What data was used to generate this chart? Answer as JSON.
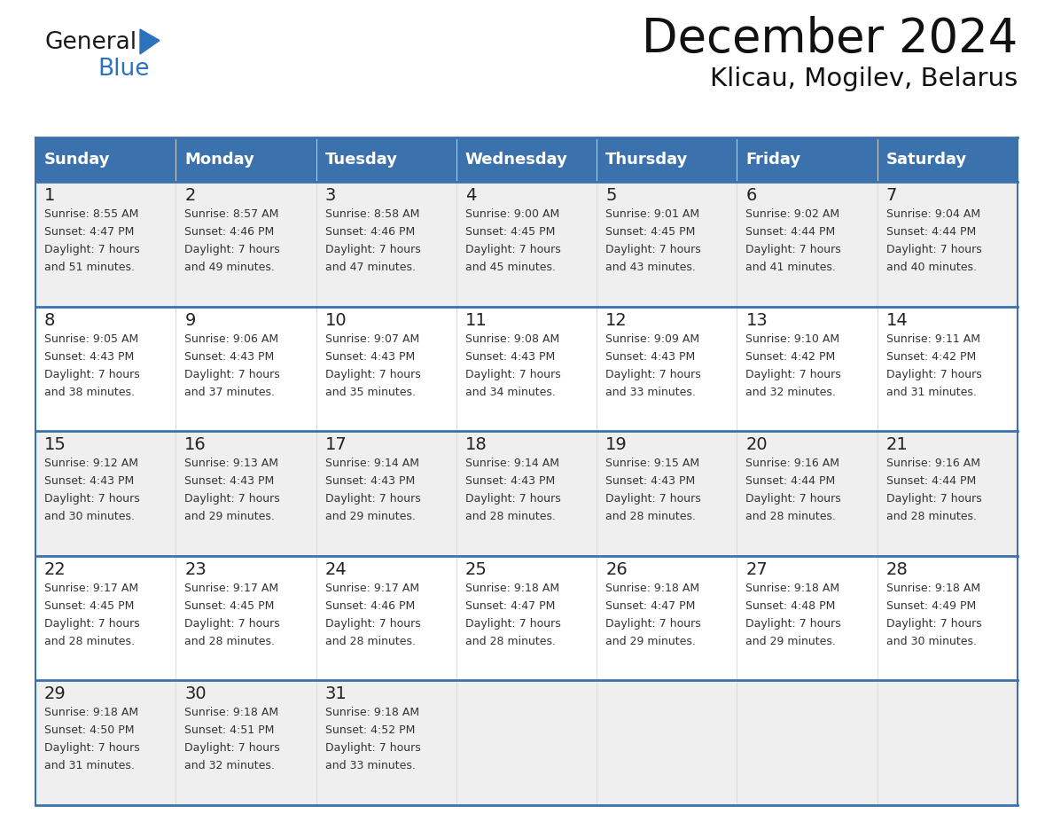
{
  "title": "December 2024",
  "subtitle": "Klicau, Mogilev, Belarus",
  "days_of_week": [
    "Sunday",
    "Monday",
    "Tuesday",
    "Wednesday",
    "Thursday",
    "Friday",
    "Saturday"
  ],
  "header_bg": "#3B72AD",
  "header_text": "#FFFFFF",
  "row_bg_1": "#EFEFEF",
  "row_bg_2": "#FFFFFF",
  "cell_text_color": "#333333",
  "day_num_color": "#222222",
  "grid_line_color": "#3B72AD",
  "title_color": "#111111",
  "subtitle_color": "#111111",
  "logo_general_color": "#1a1a1a",
  "logo_blue_color": "#2B72C0",
  "calendar_data": [
    [
      {
        "day": "1",
        "sunrise": "8:55 AM",
        "sunset": "4:47 PM",
        "daylight_line1": "Daylight: 7 hours",
        "daylight_line2": "and 51 minutes."
      },
      {
        "day": "2",
        "sunrise": "8:57 AM",
        "sunset": "4:46 PM",
        "daylight_line1": "Daylight: 7 hours",
        "daylight_line2": "and 49 minutes."
      },
      {
        "day": "3",
        "sunrise": "8:58 AM",
        "sunset": "4:46 PM",
        "daylight_line1": "Daylight: 7 hours",
        "daylight_line2": "and 47 minutes."
      },
      {
        "day": "4",
        "sunrise": "9:00 AM",
        "sunset": "4:45 PM",
        "daylight_line1": "Daylight: 7 hours",
        "daylight_line2": "and 45 minutes."
      },
      {
        "day": "5",
        "sunrise": "9:01 AM",
        "sunset": "4:45 PM",
        "daylight_line1": "Daylight: 7 hours",
        "daylight_line2": "and 43 minutes."
      },
      {
        "day": "6",
        "sunrise": "9:02 AM",
        "sunset": "4:44 PM",
        "daylight_line1": "Daylight: 7 hours",
        "daylight_line2": "and 41 minutes."
      },
      {
        "day": "7",
        "sunrise": "9:04 AM",
        "sunset": "4:44 PM",
        "daylight_line1": "Daylight: 7 hours",
        "daylight_line2": "and 40 minutes."
      }
    ],
    [
      {
        "day": "8",
        "sunrise": "9:05 AM",
        "sunset": "4:43 PM",
        "daylight_line1": "Daylight: 7 hours",
        "daylight_line2": "and 38 minutes."
      },
      {
        "day": "9",
        "sunrise": "9:06 AM",
        "sunset": "4:43 PM",
        "daylight_line1": "Daylight: 7 hours",
        "daylight_line2": "and 37 minutes."
      },
      {
        "day": "10",
        "sunrise": "9:07 AM",
        "sunset": "4:43 PM",
        "daylight_line1": "Daylight: 7 hours",
        "daylight_line2": "and 35 minutes."
      },
      {
        "day": "11",
        "sunrise": "9:08 AM",
        "sunset": "4:43 PM",
        "daylight_line1": "Daylight: 7 hours",
        "daylight_line2": "and 34 minutes."
      },
      {
        "day": "12",
        "sunrise": "9:09 AM",
        "sunset": "4:43 PM",
        "daylight_line1": "Daylight: 7 hours",
        "daylight_line2": "and 33 minutes."
      },
      {
        "day": "13",
        "sunrise": "9:10 AM",
        "sunset": "4:42 PM",
        "daylight_line1": "Daylight: 7 hours",
        "daylight_line2": "and 32 minutes."
      },
      {
        "day": "14",
        "sunrise": "9:11 AM",
        "sunset": "4:42 PM",
        "daylight_line1": "Daylight: 7 hours",
        "daylight_line2": "and 31 minutes."
      }
    ],
    [
      {
        "day": "15",
        "sunrise": "9:12 AM",
        "sunset": "4:43 PM",
        "daylight_line1": "Daylight: 7 hours",
        "daylight_line2": "and 30 minutes."
      },
      {
        "day": "16",
        "sunrise": "9:13 AM",
        "sunset": "4:43 PM",
        "daylight_line1": "Daylight: 7 hours",
        "daylight_line2": "and 29 minutes."
      },
      {
        "day": "17",
        "sunrise": "9:14 AM",
        "sunset": "4:43 PM",
        "daylight_line1": "Daylight: 7 hours",
        "daylight_line2": "and 29 minutes."
      },
      {
        "day": "18",
        "sunrise": "9:14 AM",
        "sunset": "4:43 PM",
        "daylight_line1": "Daylight: 7 hours",
        "daylight_line2": "and 28 minutes."
      },
      {
        "day": "19",
        "sunrise": "9:15 AM",
        "sunset": "4:43 PM",
        "daylight_line1": "Daylight: 7 hours",
        "daylight_line2": "and 28 minutes."
      },
      {
        "day": "20",
        "sunrise": "9:16 AM",
        "sunset": "4:44 PM",
        "daylight_line1": "Daylight: 7 hours",
        "daylight_line2": "and 28 minutes."
      },
      {
        "day": "21",
        "sunrise": "9:16 AM",
        "sunset": "4:44 PM",
        "daylight_line1": "Daylight: 7 hours",
        "daylight_line2": "and 28 minutes."
      }
    ],
    [
      {
        "day": "22",
        "sunrise": "9:17 AM",
        "sunset": "4:45 PM",
        "daylight_line1": "Daylight: 7 hours",
        "daylight_line2": "and 28 minutes."
      },
      {
        "day": "23",
        "sunrise": "9:17 AM",
        "sunset": "4:45 PM",
        "daylight_line1": "Daylight: 7 hours",
        "daylight_line2": "and 28 minutes."
      },
      {
        "day": "24",
        "sunrise": "9:17 AM",
        "sunset": "4:46 PM",
        "daylight_line1": "Daylight: 7 hours",
        "daylight_line2": "and 28 minutes."
      },
      {
        "day": "25",
        "sunrise": "9:18 AM",
        "sunset": "4:47 PM",
        "daylight_line1": "Daylight: 7 hours",
        "daylight_line2": "and 28 minutes."
      },
      {
        "day": "26",
        "sunrise": "9:18 AM",
        "sunset": "4:47 PM",
        "daylight_line1": "Daylight: 7 hours",
        "daylight_line2": "and 29 minutes."
      },
      {
        "day": "27",
        "sunrise": "9:18 AM",
        "sunset": "4:48 PM",
        "daylight_line1": "Daylight: 7 hours",
        "daylight_line2": "and 29 minutes."
      },
      {
        "day": "28",
        "sunrise": "9:18 AM",
        "sunset": "4:49 PM",
        "daylight_line1": "Daylight: 7 hours",
        "daylight_line2": "and 30 minutes."
      }
    ],
    [
      {
        "day": "29",
        "sunrise": "9:18 AM",
        "sunset": "4:50 PM",
        "daylight_line1": "Daylight: 7 hours",
        "daylight_line2": "and 31 minutes."
      },
      {
        "day": "30",
        "sunrise": "9:18 AM",
        "sunset": "4:51 PM",
        "daylight_line1": "Daylight: 7 hours",
        "daylight_line2": "and 32 minutes."
      },
      {
        "day": "31",
        "sunrise": "9:18 AM",
        "sunset": "4:52 PM",
        "daylight_line1": "Daylight: 7 hours",
        "daylight_line2": "and 33 minutes."
      },
      null,
      null,
      null,
      null
    ]
  ]
}
